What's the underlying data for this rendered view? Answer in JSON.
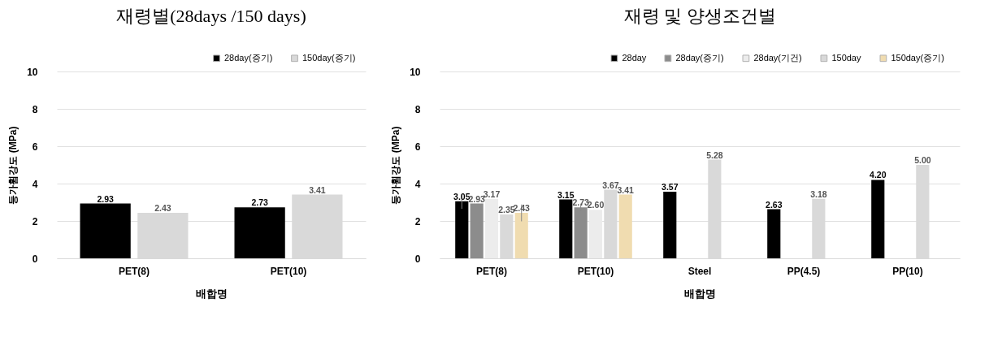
{
  "chart_data": [
    {
      "type": "bar",
      "title": "재령별(28days /150  days)",
      "xlabel": "배합명",
      "ylabel": "등가휨강도 (MPa)",
      "categories": [
        "PET(8)",
        "PET(10)"
      ],
      "series": [
        {
          "name": "28day(증기)",
          "color": "#000000",
          "values": [
            2.93,
            2.73
          ],
          "value_labels": [
            "2.93",
            "2.73"
          ]
        },
        {
          "name": "150day(증기)",
          "color": "#d9d9d9",
          "values": [
            2.43,
            3.41
          ],
          "value_labels": [
            "2.43",
            "3.41"
          ]
        }
      ],
      "ylim": [
        0,
        10
      ],
      "yticks": [
        0,
        2,
        4,
        6,
        8,
        10
      ],
      "grid": "y",
      "legend": "top right"
    },
    {
      "type": "bar",
      "title": "재령 및 양생조건별",
      "xlabel": "배합명",
      "ylabel": "등가휨강도 (MPa)",
      "categories": [
        "PET(8)",
        "PET(10)",
        "Steel",
        "PP(4.5)",
        "PP(10)"
      ],
      "series": [
        {
          "name": "28day",
          "color": "#000000",
          "values": [
            3.05,
            3.15,
            3.57,
            2.63,
            4.2
          ],
          "value_labels": [
            "3.05",
            "3.15",
            "3.57",
            "2.63",
            "4.20"
          ],
          "errors": [
            0.4,
            null,
            null,
            null,
            null
          ]
        },
        {
          "name": "28day(증기)",
          "color": "#8c8c8c",
          "values": [
            2.93,
            2.73,
            null,
            null,
            null
          ],
          "value_labels": [
            "2.93",
            "2.73",
            null,
            null,
            null
          ],
          "errors": [
            null,
            0.2,
            null,
            null,
            null
          ]
        },
        {
          "name": "28day(기건)",
          "color": "#ececec",
          "values": [
            3.17,
            2.6,
            null,
            null,
            null
          ],
          "value_labels": [
            "3.17",
            "2.60",
            null,
            null,
            null
          ]
        },
        {
          "name": "150day",
          "color": "#d9d9d9",
          "values": [
            2.35,
            3.67,
            5.28,
            3.18,
            5.0
          ],
          "value_labels": [
            "2.35",
            "3.67",
            "5.28",
            "3.18",
            "5.00"
          ]
        },
        {
          "name": "150day(증기)",
          "color": "#f0dcb0",
          "values": [
            2.43,
            3.41,
            null,
            null,
            null
          ],
          "value_labels": [
            "2.43",
            "3.41",
            null,
            null,
            null
          ],
          "errors": [
            0.45,
            null,
            null,
            null,
            null
          ]
        }
      ],
      "ylim": [
        0,
        10
      ],
      "yticks": [
        0,
        2,
        4,
        6,
        8,
        10
      ],
      "grid": "y",
      "legend": "top right"
    }
  ]
}
